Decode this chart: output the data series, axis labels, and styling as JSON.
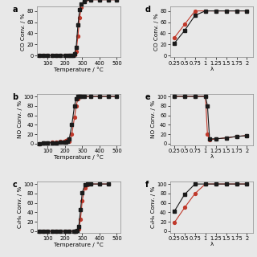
{
  "panels": {
    "a": {
      "label": "a",
      "xlabel": "Temperature / °C",
      "ylabel": "CO Conv. / %",
      "xlim": [
        40,
        520
      ],
      "ylim": [
        -3,
        88
      ],
      "xticks": [
        100,
        200,
        300,
        400,
        500
      ],
      "yticks": [
        0,
        20,
        40,
        60,
        80
      ],
      "black_x": [
        50,
        75,
        100,
        125,
        150,
        175,
        200,
        220,
        235,
        245,
        255,
        265,
        275,
        285,
        295,
        310,
        350,
        400,
        450,
        500
      ],
      "black_y": [
        0,
        0,
        0,
        0,
        0,
        0,
        0,
        0,
        0,
        1,
        4,
        15,
        55,
        82,
        92,
        97,
        100,
        100,
        100,
        100
      ],
      "red_x": [
        50,
        75,
        100,
        125,
        150,
        175,
        200,
        220,
        235,
        245,
        255,
        265,
        275,
        285,
        295,
        310,
        350,
        400,
        450,
        500
      ],
      "red_y": [
        0,
        0,
        0,
        0,
        0,
        0,
        0,
        0,
        0,
        0,
        2,
        8,
        35,
        68,
        87,
        96,
        100,
        100,
        100,
        100
      ]
    },
    "b": {
      "label": "b",
      "xlabel": "Temperature / °C",
      "ylabel": "NO Conv. / %",
      "xlim": [
        40,
        520
      ],
      "ylim": [
        -3,
        105
      ],
      "xticks": [
        100,
        200,
        300,
        400,
        500
      ],
      "yticks": [
        0,
        20,
        40,
        60,
        80,
        100
      ],
      "black_x": [
        50,
        75,
        100,
        125,
        150,
        175,
        195,
        205,
        215,
        225,
        240,
        255,
        265,
        275,
        285,
        295,
        310,
        350,
        400,
        450,
        500
      ],
      "black_y": [
        0,
        1,
        1,
        2,
        2,
        3,
        3,
        3,
        4,
        10,
        40,
        80,
        95,
        100,
        100,
        100,
        100,
        100,
        100,
        100,
        100
      ],
      "red_x": [
        50,
        75,
        100,
        125,
        150,
        175,
        195,
        205,
        215,
        225,
        240,
        255,
        265,
        275,
        285,
        295,
        310,
        350,
        400,
        450,
        500
      ],
      "red_y": [
        0,
        1,
        2,
        3,
        3,
        4,
        5,
        6,
        8,
        5,
        20,
        55,
        80,
        95,
        100,
        100,
        100,
        100,
        100,
        100,
        100
      ]
    },
    "c": {
      "label": "c",
      "xlabel": "Temperature / °C",
      "ylabel": "C₃H₆ Conv. / %",
      "xlim": [
        40,
        520
      ],
      "ylim": [
        -3,
        105
      ],
      "xticks": [
        100,
        200,
        300,
        400,
        500
      ],
      "yticks": [
        0,
        20,
        40,
        60,
        80,
        100
      ],
      "black_x": [
        50,
        75,
        100,
        125,
        150,
        175,
        200,
        225,
        250,
        260,
        270,
        280,
        290,
        300,
        315,
        330,
        350,
        400,
        450
      ],
      "black_y": [
        0,
        0,
        0,
        0,
        0,
        0,
        0,
        0,
        0,
        0,
        2,
        10,
        45,
        82,
        98,
        100,
        100,
        100,
        100
      ],
      "red_x": [
        50,
        75,
        100,
        125,
        150,
        175,
        200,
        225,
        250,
        260,
        270,
        280,
        290,
        300,
        315,
        330,
        350,
        400,
        450
      ],
      "red_y": [
        0,
        0,
        0,
        0,
        0,
        0,
        0,
        0,
        0,
        0,
        1,
        5,
        25,
        65,
        92,
        99,
        100,
        100,
        100
      ]
    },
    "d": {
      "label": "d",
      "xlabel": "λ",
      "ylabel": "CO Conv. / %",
      "xlim": [
        0.15,
        2.15
      ],
      "ylim": [
        -3,
        88
      ],
      "xticks": [
        0.25,
        0.5,
        0.75,
        1.0,
        1.25,
        1.5,
        1.75,
        2.0
      ],
      "xticklabels": [
        "0.25",
        "0.5",
        "0.75",
        "1",
        "1.25",
        "1.5",
        "1.75",
        "2"
      ],
      "yticks": [
        0,
        20,
        40,
        60,
        80
      ],
      "black_x": [
        0.25,
        0.5,
        0.75,
        1.0,
        1.25,
        1.5,
        1.75,
        2.0
      ],
      "black_y": [
        22,
        45,
        72,
        80,
        80,
        80,
        80,
        80
      ],
      "red_x": [
        0.25,
        0.5,
        0.75,
        1.0,
        1.25,
        1.5,
        1.75,
        2.0
      ],
      "red_y": [
        32,
        56,
        80,
        80,
        80,
        80,
        80,
        80
      ]
    },
    "e": {
      "label": "e",
      "xlabel": "λ",
      "ylabel": "NO Conv. / %",
      "xlim": [
        0.15,
        2.15
      ],
      "ylim": [
        -3,
        105
      ],
      "xticks": [
        0.25,
        0.5,
        0.75,
        1.0,
        1.25,
        1.5,
        1.75,
        2.0
      ],
      "xticklabels": [
        "0.25",
        "0.5",
        "0.75",
        "1",
        "1.25",
        "1.5",
        "1.75",
        "2"
      ],
      "yticks": [
        0,
        20,
        40,
        60,
        80,
        100
      ],
      "black_x": [
        0.25,
        0.5,
        0.75,
        1.0,
        1.05,
        1.1,
        1.25,
        1.5,
        1.75,
        2.0
      ],
      "black_y": [
        100,
        100,
        100,
        100,
        80,
        10,
        10,
        12,
        15,
        17
      ],
      "red_x": [
        0.25,
        0.5,
        0.75,
        1.0,
        1.05,
        1.1,
        1.25,
        1.5,
        1.75,
        2.0
      ],
      "red_y": [
        100,
        100,
        100,
        100,
        20,
        8,
        10,
        12,
        15,
        17
      ]
    },
    "f": {
      "label": "f",
      "xlabel": "λ",
      "ylabel": "C₃H₆ Conv. / %",
      "xlim": [
        0.15,
        2.15
      ],
      "ylim": [
        -3,
        105
      ],
      "xticks": [
        0.25,
        0.5,
        0.75,
        1.0,
        1.25,
        1.5,
        1.75,
        2.0
      ],
      "xticklabels": [
        "0.25",
        "0.5",
        "0.75",
        "1",
        "1.25",
        "1.5",
        "1.75",
        "2"
      ],
      "yticks": [
        0,
        20,
        40,
        60,
        80,
        100
      ],
      "black_x": [
        0.25,
        0.5,
        0.75,
        1.0,
        1.25,
        1.5,
        1.75,
        2.0
      ],
      "black_y": [
        42,
        78,
        100,
        100,
        100,
        100,
        100,
        100
      ],
      "red_x": [
        0.25,
        0.5,
        0.75,
        1.0,
        1.25,
        1.5,
        1.75,
        2.0
      ],
      "red_y": [
        18,
        50,
        80,
        100,
        100,
        100,
        100,
        100
      ]
    }
  },
  "black_color": "#1a1a1a",
  "red_color": "#c0392b",
  "marker_size": 2.8,
  "line_width": 0.8,
  "font_size": 5.2,
  "label_font_size": 7.0,
  "tick_font_size": 4.8,
  "bg_color": "#e8e8e8"
}
